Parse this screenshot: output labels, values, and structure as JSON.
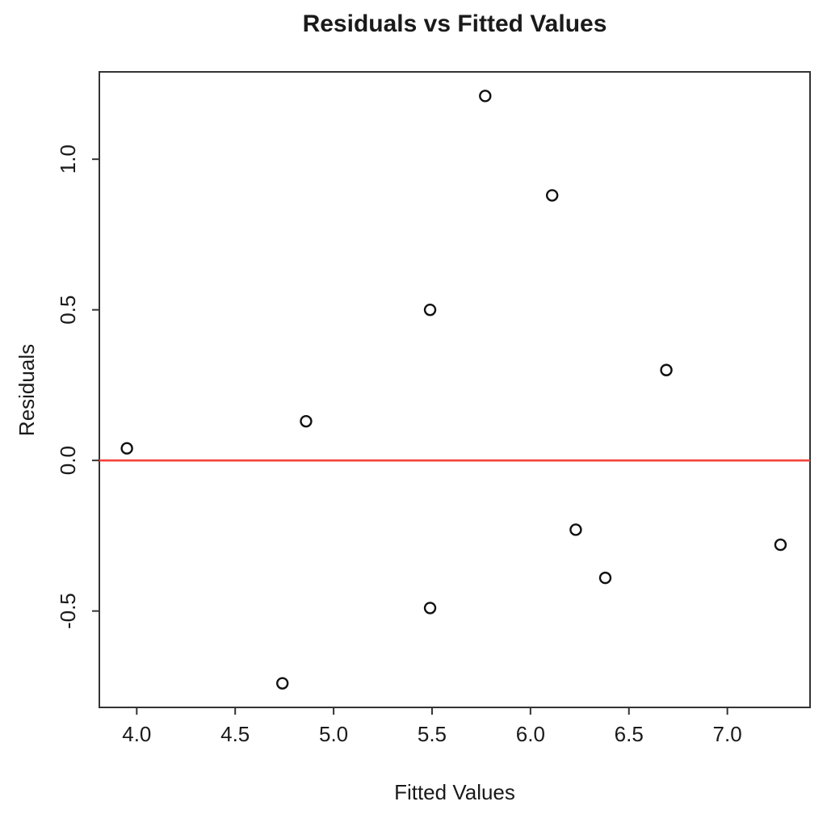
{
  "chart_data": {
    "type": "scatter",
    "title": "Residuals vs Fitted Values",
    "xlabel": "Fitted Values",
    "ylabel": "Residuals",
    "xlim": [
      3.81,
      7.42
    ],
    "ylim": [
      -0.82,
      1.29
    ],
    "x_ticks": [
      4.0,
      4.5,
      5.0,
      5.5,
      6.0,
      6.5,
      7.0
    ],
    "y_ticks": [
      -0.5,
      0.0,
      0.5,
      1.0
    ],
    "grid": false,
    "legend": false,
    "marker": "open-circle",
    "marker_color": "#111111",
    "marker_radius_px": 6.5,
    "reference_line": {
      "y": 0,
      "color": "#f4423a",
      "style": "solid"
    },
    "points": [
      {
        "x": 3.95,
        "y": 0.04
      },
      {
        "x": 4.74,
        "y": -0.74
      },
      {
        "x": 4.86,
        "y": 0.13
      },
      {
        "x": 5.49,
        "y": 0.5
      },
      {
        "x": 5.49,
        "y": -0.49
      },
      {
        "x": 5.77,
        "y": 1.21
      },
      {
        "x": 6.11,
        "y": 0.88
      },
      {
        "x": 6.23,
        "y": -0.23
      },
      {
        "x": 6.38,
        "y": -0.39
      },
      {
        "x": 6.69,
        "y": 0.3
      },
      {
        "x": 7.27,
        "y": -0.28
      }
    ]
  }
}
